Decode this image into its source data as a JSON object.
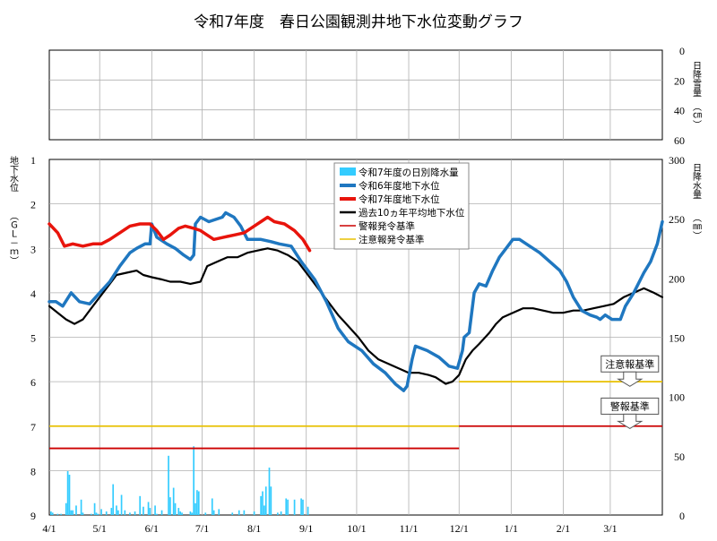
{
  "chart_data": {
    "title": "令和7年度　春日公園観測井地下水位変動グラフ",
    "snow_panel": {
      "ylabel": "日降雪量",
      "yunit": "（㎝）",
      "yticks": [
        "0",
        "20",
        "40",
        "60"
      ],
      "ylim": [
        0,
        60
      ],
      "series": []
    },
    "main_panel": {
      "type": "line+bar",
      "ylabel_left": "地下水位",
      "ylabel_left_unit": "（ＧＬ－ｍ）",
      "ylabel_right": "日降水量",
      "ylabel_right_unit": "（㎜）",
      "yticks_left": [
        "1",
        "2",
        "3",
        "4",
        "5",
        "6",
        "7",
        "8",
        "9"
      ],
      "ylim_left": [
        1,
        9
      ],
      "left_inverted": true,
      "yticks_right": [
        "0",
        "50",
        "100",
        "150",
        "200",
        "250",
        "300"
      ],
      "ylim_right": [
        0,
        300
      ],
      "x_ticks": [
        "4/1",
        "5/1",
        "6/1",
        "7/1",
        "8/1",
        "9/1",
        "10/1",
        "11/1",
        "12/1",
        "1/1",
        "2/1",
        "3/1"
      ],
      "x_tick_days": [
        0,
        30,
        61,
        91,
        122,
        153,
        183,
        214,
        244,
        275,
        306,
        334
      ],
      "x_days_total": 365,
      "grid": true,
      "legend_position": "top-center",
      "legend": [
        {
          "label": "令和7年度の日別降水量",
          "color": "#33ccff",
          "kind": "bar"
        },
        {
          "label": "令和6年度地下水位",
          "color": "#1f77c0",
          "kind": "line"
        },
        {
          "label": "令和7年度地下水位",
          "color": "#e8140c",
          "kind": "line"
        },
        {
          "label": "過去10ヵ年平均地下水位",
          "color": "#000000",
          "kind": "line"
        },
        {
          "label": "警報発令基準",
          "color": "#cc0000",
          "kind": "thin"
        },
        {
          "label": "注意報発令基準",
          "color": "#e8c000",
          "kind": "thin"
        }
      ],
      "series": [
        {
          "name": "令和6年度地下水位",
          "color": "#1f77c0",
          "width": 3.5,
          "points": [
            [
              0,
              4.2
            ],
            [
              4,
              4.2
            ],
            [
              8,
              4.3
            ],
            [
              13,
              4.0
            ],
            [
              18,
              4.2
            ],
            [
              24,
              4.25
            ],
            [
              30,
              4.0
            ],
            [
              36,
              3.75
            ],
            [
              42,
              3.4
            ],
            [
              48,
              3.1
            ],
            [
              52,
              3.0
            ],
            [
              57,
              2.9
            ],
            [
              60,
              2.9
            ],
            [
              61,
              2.45
            ],
            [
              64,
              2.75
            ],
            [
              70,
              2.9
            ],
            [
              75,
              3.0
            ],
            [
              80,
              3.15
            ],
            [
              84,
              3.25
            ],
            [
              86,
              3.15
            ],
            [
              87,
              2.45
            ],
            [
              90,
              2.3
            ],
            [
              95,
              2.4
            ],
            [
              99,
              2.35
            ],
            [
              103,
              2.3
            ],
            [
              105,
              2.2
            ],
            [
              110,
              2.3
            ],
            [
              114,
              2.5
            ],
            [
              118,
              2.8
            ],
            [
              126,
              2.8
            ],
            [
              132,
              2.85
            ],
            [
              137,
              2.9
            ],
            [
              144,
              2.95
            ],
            [
              150,
              3.3
            ],
            [
              158,
              3.7
            ],
            [
              165,
              4.2
            ],
            [
              172,
              4.8
            ],
            [
              178,
              5.1
            ],
            [
              186,
              5.3
            ],
            [
              193,
              5.6
            ],
            [
              200,
              5.8
            ],
            [
              206,
              6.05
            ],
            [
              211,
              6.2
            ],
            [
              213,
              6.1
            ],
            [
              216,
              5.5
            ],
            [
              218,
              5.2
            ],
            [
              225,
              5.3
            ],
            [
              232,
              5.45
            ],
            [
              238,
              5.65
            ],
            [
              243,
              5.7
            ],
            [
              246,
              5.3
            ],
            [
              247,
              5.0
            ],
            [
              250,
              4.9
            ],
            [
              253,
              4.0
            ],
            [
              256,
              3.8
            ],
            [
              260,
              3.85
            ],
            [
              264,
              3.5
            ],
            [
              268,
              3.2
            ],
            [
              272,
              3.0
            ],
            [
              276,
              2.8
            ],
            [
              280,
              2.8
            ],
            [
              286,
              2.95
            ],
            [
              292,
              3.1
            ],
            [
              298,
              3.3
            ],
            [
              304,
              3.5
            ],
            [
              308,
              3.75
            ],
            [
              312,
              4.1
            ],
            [
              317,
              4.4
            ],
            [
              322,
              4.5
            ],
            [
              326,
              4.55
            ],
            [
              328,
              4.6
            ],
            [
              331,
              4.5
            ],
            [
              335,
              4.6
            ],
            [
              340,
              4.6
            ],
            [
              343,
              4.3
            ],
            [
              348,
              4.0
            ],
            [
              354,
              3.55
            ],
            [
              358,
              3.3
            ],
            [
              362,
              2.9
            ],
            [
              365,
              2.4
            ]
          ]
        },
        {
          "name": "令和7年度地下水位",
          "color": "#e8140c",
          "width": 3.5,
          "points": [
            [
              0,
              2.45
            ],
            [
              5,
              2.65
            ],
            [
              9,
              2.95
            ],
            [
              14,
              2.9
            ],
            [
              20,
              2.95
            ],
            [
              26,
              2.9
            ],
            [
              31,
              2.9
            ],
            [
              36,
              2.8
            ],
            [
              42,
              2.65
            ],
            [
              48,
              2.5
            ],
            [
              54,
              2.45
            ],
            [
              60,
              2.45
            ],
            [
              64,
              2.6
            ],
            [
              68,
              2.8
            ],
            [
              72,
              2.7
            ],
            [
              77,
              2.55
            ],
            [
              81,
              2.5
            ],
            [
              86,
              2.55
            ],
            [
              90,
              2.6
            ],
            [
              94,
              2.7
            ],
            [
              98,
              2.8
            ],
            [
              104,
              2.75
            ],
            [
              110,
              2.7
            ],
            [
              116,
              2.65
            ],
            [
              120,
              2.55
            ],
            [
              126,
              2.4
            ],
            [
              130,
              2.3
            ],
            [
              134,
              2.4
            ],
            [
              140,
              2.45
            ],
            [
              146,
              2.6
            ],
            [
              151,
              2.8
            ],
            [
              155,
              3.05
            ]
          ]
        },
        {
          "name": "過去10ヵ年平均地下水位",
          "color": "#000000",
          "width": 2.2,
          "points": [
            [
              0,
              4.3
            ],
            [
              5,
              4.45
            ],
            [
              10,
              4.6
            ],
            [
              15,
              4.7
            ],
            [
              20,
              4.6
            ],
            [
              25,
              4.35
            ],
            [
              30,
              4.1
            ],
            [
              36,
              3.8
            ],
            [
              40,
              3.6
            ],
            [
              46,
              3.55
            ],
            [
              52,
              3.5
            ],
            [
              56,
              3.6
            ],
            [
              61,
              3.65
            ],
            [
              67,
              3.7
            ],
            [
              72,
              3.75
            ],
            [
              78,
              3.75
            ],
            [
              84,
              3.8
            ],
            [
              90,
              3.75
            ],
            [
              94,
              3.4
            ],
            [
              100,
              3.3
            ],
            [
              106,
              3.2
            ],
            [
              112,
              3.2
            ],
            [
              118,
              3.1
            ],
            [
              124,
              3.05
            ],
            [
              130,
              3.0
            ],
            [
              136,
              3.05
            ],
            [
              142,
              3.15
            ],
            [
              148,
              3.3
            ],
            [
              154,
              3.6
            ],
            [
              160,
              3.9
            ],
            [
              166,
              4.2
            ],
            [
              172,
              4.5
            ],
            [
              178,
              4.75
            ],
            [
              184,
              5.0
            ],
            [
              190,
              5.3
            ],
            [
              196,
              5.5
            ],
            [
              202,
              5.6
            ],
            [
              208,
              5.7
            ],
            [
              214,
              5.8
            ],
            [
              220,
              5.8
            ],
            [
              226,
              5.85
            ],
            [
              230,
              5.9
            ],
            [
              236,
              6.05
            ],
            [
              240,
              6.0
            ],
            [
              244,
              5.85
            ],
            [
              248,
              5.5
            ],
            [
              252,
              5.3
            ],
            [
              256,
              5.15
            ],
            [
              262,
              4.9
            ],
            [
              266,
              4.7
            ],
            [
              270,
              4.55
            ],
            [
              276,
              4.45
            ],
            [
              282,
              4.35
            ],
            [
              288,
              4.35
            ],
            [
              294,
              4.4
            ],
            [
              300,
              4.45
            ],
            [
              306,
              4.45
            ],
            [
              312,
              4.4
            ],
            [
              318,
              4.4
            ],
            [
              324,
              4.35
            ],
            [
              330,
              4.3
            ],
            [
              336,
              4.25
            ],
            [
              342,
              4.1
            ],
            [
              348,
              4.0
            ],
            [
              354,
              3.9
            ],
            [
              360,
              4.0
            ],
            [
              365,
              4.1
            ]
          ]
        }
      ],
      "thresholds": [
        {
          "name": "注意報発令基準",
          "color": "#e8c000",
          "segments": [
            [
              0,
              244,
              7.0
            ],
            [
              244,
              365,
              6.0
            ]
          ]
        },
        {
          "name": "警報発令基準",
          "color": "#cc0000",
          "segments": [
            [
              0,
              244,
              7.5
            ],
            [
              244,
              365,
              7.0
            ]
          ]
        }
      ],
      "annotations": [
        {
          "text": "注意報基準",
          "day": 335,
          "level": 5.6,
          "color": "#e8a000"
        },
        {
          "text": "警報基準",
          "day": 335,
          "level": 6.55,
          "color": "#cc0000"
        }
      ],
      "precip_color": "#33ccff",
      "precip": [
        [
          1,
          3
        ],
        [
          2,
          2
        ],
        [
          5,
          1
        ],
        [
          7,
          1
        ],
        [
          10,
          10
        ],
        [
          11,
          37
        ],
        [
          12,
          34
        ],
        [
          13,
          4
        ],
        [
          14,
          4
        ],
        [
          16,
          8
        ],
        [
          19,
          13
        ],
        [
          20,
          2
        ],
        [
          25,
          1
        ],
        [
          27,
          10
        ],
        [
          28,
          2
        ],
        [
          29,
          1
        ],
        [
          31,
          5
        ],
        [
          34,
          3
        ],
        [
          37,
          6
        ],
        [
          38,
          26
        ],
        [
          40,
          8
        ],
        [
          41,
          4
        ],
        [
          43,
          17
        ],
        [
          45,
          4
        ],
        [
          48,
          2
        ],
        [
          51,
          3
        ],
        [
          54,
          16
        ],
        [
          56,
          7
        ],
        [
          59,
          11
        ],
        [
          60,
          6
        ],
        [
          63,
          8
        ],
        [
          64,
          1
        ],
        [
          67,
          4
        ],
        [
          71,
          50
        ],
        [
          72,
          15
        ],
        [
          74,
          23
        ],
        [
          75,
          10
        ],
        [
          77,
          6
        ],
        [
          78,
          3
        ],
        [
          79,
          2
        ],
        [
          84,
          3
        ],
        [
          85,
          2
        ],
        [
          86,
          58
        ],
        [
          87,
          10
        ],
        [
          88,
          21
        ],
        [
          89,
          20
        ],
        [
          93,
          2
        ],
        [
          97,
          14
        ],
        [
          98,
          4
        ],
        [
          101,
          5
        ],
        [
          109,
          2
        ],
        [
          113,
          4
        ],
        [
          116,
          4
        ],
        [
          122,
          3
        ],
        [
          126,
          16
        ],
        [
          127,
          20
        ],
        [
          128,
          8
        ],
        [
          129,
          24
        ],
        [
          131,
          40
        ],
        [
          132,
          24
        ],
        [
          136,
          2
        ],
        [
          138,
          3
        ],
        [
          141,
          14
        ],
        [
          142,
          13
        ],
        [
          146,
          13
        ],
        [
          150,
          14
        ],
        [
          151,
          13
        ],
        [
          154,
          7
        ]
      ]
    }
  }
}
